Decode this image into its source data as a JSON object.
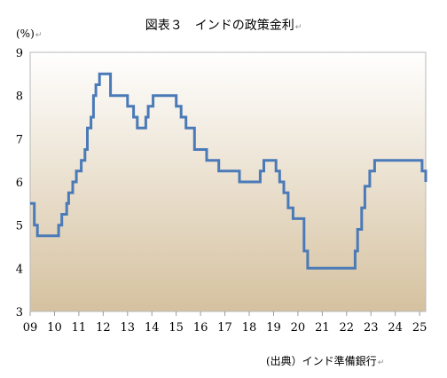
{
  "title": "図表３　インドの政策金利",
  "unit_label": "(%)",
  "source": "(出典）インド準備銀行",
  "return_mark": "↵",
  "colors": {
    "line": "#4a7ab7",
    "bg_top": "#ffffff",
    "bg_bottom": "#d5c19f",
    "frame": "#b8b8b8"
  },
  "chart_data": {
    "type": "line",
    "title": "図表３　インドの政策金利",
    "ylabel": "(%)",
    "xlabel": "",
    "xlim": [
      2009.0,
      2025.25
    ],
    "ylim": [
      3,
      9
    ],
    "yticks": [
      "3",
      "4",
      "5",
      "6",
      "7",
      "8",
      "9"
    ],
    "xticks": [
      {
        "year": 2009,
        "label": "09"
      },
      {
        "year": 2010,
        "label": "10"
      },
      {
        "year": 2011,
        "label": "11"
      },
      {
        "year": 2012,
        "label": "12"
      },
      {
        "year": 2013,
        "label": "13"
      },
      {
        "year": 2014,
        "label": "14"
      },
      {
        "year": 2015,
        "label": "15"
      },
      {
        "year": 2016,
        "label": "16"
      },
      {
        "year": 2017,
        "label": "17"
      },
      {
        "year": 2018,
        "label": "18"
      },
      {
        "year": 2019,
        "label": "19"
      },
      {
        "year": 2020,
        "label": "20"
      },
      {
        "year": 2021,
        "label": "21"
      },
      {
        "year": 2022,
        "label": "22"
      },
      {
        "year": 2023,
        "label": "23"
      },
      {
        "year": 2024,
        "label": "24"
      },
      {
        "year": 2025,
        "label": "25"
      }
    ],
    "grid": false,
    "legend": "none",
    "series": [
      {
        "values": [
          [
            2009.0,
            5.5
          ],
          [
            2009.17,
            5.0
          ],
          [
            2009.3,
            4.75
          ],
          [
            2010.17,
            5.0
          ],
          [
            2010.3,
            5.25
          ],
          [
            2010.5,
            5.5
          ],
          [
            2010.58,
            5.75
          ],
          [
            2010.75,
            6.0
          ],
          [
            2010.9,
            6.25
          ],
          [
            2011.1,
            6.5
          ],
          [
            2011.25,
            6.75
          ],
          [
            2011.35,
            7.25
          ],
          [
            2011.5,
            7.5
          ],
          [
            2011.6,
            8.0
          ],
          [
            2011.7,
            8.25
          ],
          [
            2011.85,
            8.5
          ],
          [
            2012.3,
            8.0
          ],
          [
            2013.0,
            7.75
          ],
          [
            2013.25,
            7.5
          ],
          [
            2013.4,
            7.25
          ],
          [
            2013.75,
            7.5
          ],
          [
            2013.85,
            7.75
          ],
          [
            2014.05,
            8.0
          ],
          [
            2015.0,
            7.75
          ],
          [
            2015.2,
            7.5
          ],
          [
            2015.4,
            7.25
          ],
          [
            2015.75,
            6.75
          ],
          [
            2016.25,
            6.5
          ],
          [
            2016.75,
            6.25
          ],
          [
            2017.6,
            6.0
          ],
          [
            2018.45,
            6.25
          ],
          [
            2018.6,
            6.5
          ],
          [
            2019.1,
            6.25
          ],
          [
            2019.25,
            6.0
          ],
          [
            2019.42,
            5.75
          ],
          [
            2019.6,
            5.4
          ],
          [
            2019.8,
            5.15
          ],
          [
            2020.25,
            4.4
          ],
          [
            2020.4,
            4.0
          ],
          [
            2022.35,
            4.4
          ],
          [
            2022.45,
            4.9
          ],
          [
            2022.62,
            5.4
          ],
          [
            2022.75,
            5.9
          ],
          [
            2022.95,
            6.25
          ],
          [
            2023.15,
            6.5
          ],
          [
            2025.1,
            6.25
          ],
          [
            2025.25,
            6.0
          ]
        ]
      }
    ]
  }
}
